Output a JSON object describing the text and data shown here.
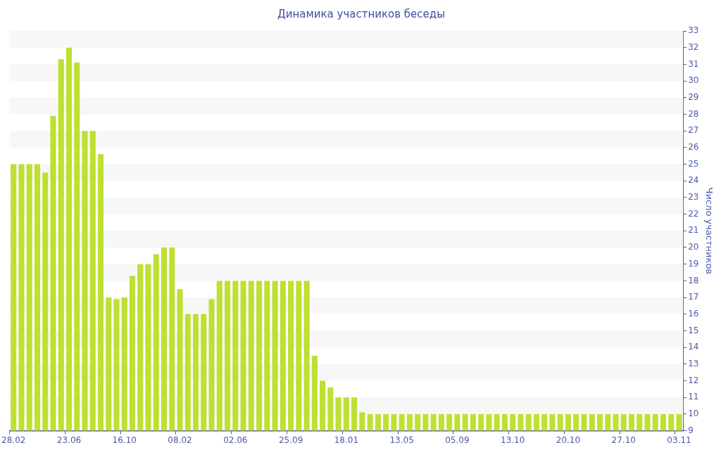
{
  "chart_data": {
    "type": "bar",
    "title": "Динамика участников беседы",
    "ylabel": "Число участников",
    "categories": [
      "28.02",
      null,
      null,
      null,
      null,
      null,
      null,
      "23.06",
      null,
      null,
      null,
      null,
      null,
      null,
      "16.10",
      null,
      null,
      null,
      null,
      null,
      null,
      "08.02",
      null,
      null,
      null,
      null,
      null,
      null,
      "02.06",
      null,
      null,
      null,
      null,
      null,
      null,
      "25.09",
      null,
      null,
      null,
      null,
      null,
      null,
      "18.01",
      null,
      null,
      null,
      null,
      null,
      null,
      "13.05",
      null,
      null,
      null,
      null,
      null,
      null,
      "05.09",
      null,
      null,
      null,
      null,
      null,
      null,
      "13.10",
      null,
      null,
      null,
      null,
      null,
      null,
      "20.10",
      null,
      null,
      null,
      null,
      null,
      null,
      "27.10",
      null,
      null,
      null,
      null,
      null,
      null,
      "03.11"
    ],
    "values": [
      25,
      25,
      25,
      25,
      24.5,
      27.9,
      31.3,
      32,
      31.1,
      27,
      27,
      25.6,
      17,
      16.9,
      17,
      18.3,
      19,
      19,
      19.6,
      20,
      20,
      17.5,
      16,
      16,
      16,
      16.9,
      18,
      18,
      18,
      18,
      18,
      18,
      18,
      18,
      18,
      18,
      18,
      18,
      13.5,
      12,
      11.6,
      11,
      11,
      11,
      10.1,
      10,
      10,
      10,
      10,
      10,
      10,
      10,
      10,
      10,
      10,
      10,
      10,
      10,
      10,
      10,
      10,
      10,
      10,
      10,
      10,
      10,
      10,
      10,
      10,
      10,
      10,
      10,
      10,
      10,
      10,
      10,
      10,
      10,
      10,
      10,
      10,
      10,
      10,
      10,
      10
    ],
    "color": "#bde032",
    "ylim": [
      9,
      33
    ],
    "yticks": [
      9,
      10,
      11,
      12,
      13,
      14,
      15,
      16,
      17,
      18,
      19,
      20,
      21,
      22,
      23,
      24,
      25,
      26,
      27,
      28,
      29,
      30,
      31,
      32,
      33
    ],
    "grid": false,
    "legend": false
  }
}
